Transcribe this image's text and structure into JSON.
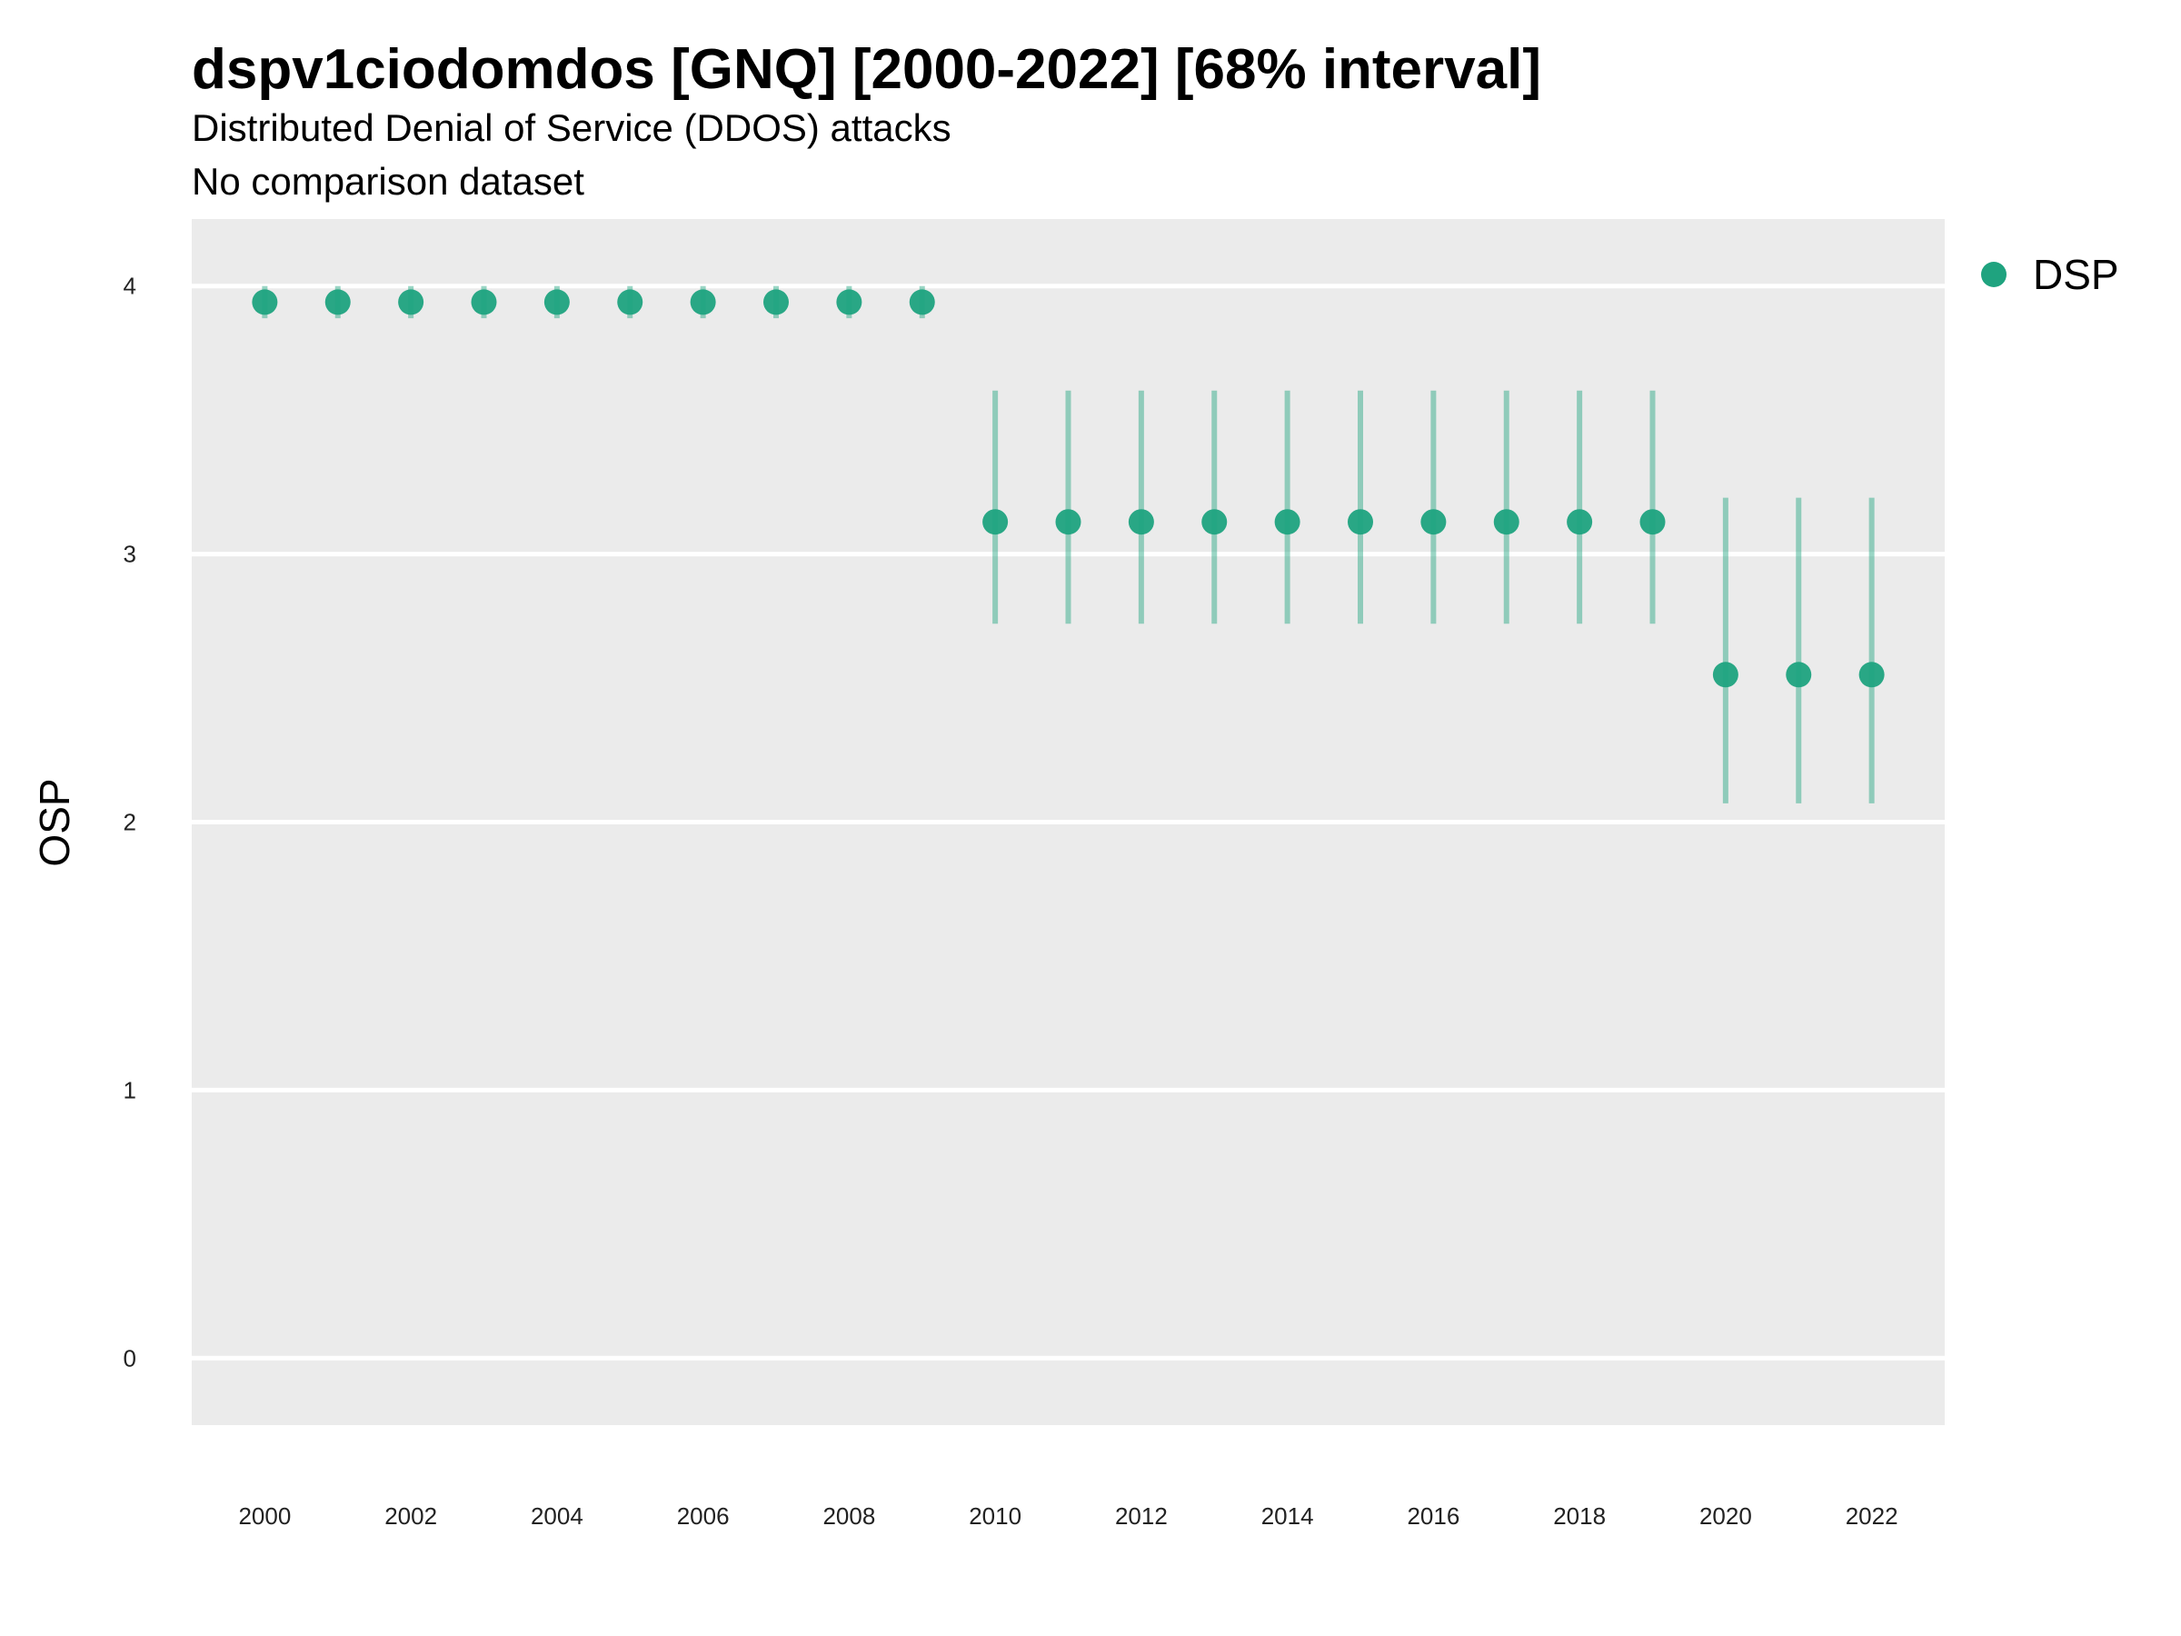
{
  "chart_data": {
    "type": "scatter",
    "title": "dspv1ciodomdos [GNQ] [2000-2022] [68% interval]",
    "subtitle": "Distributed Denial of Service (DDOS) attacks",
    "caption": "No comparison dataset",
    "xlabel": "",
    "ylabel": "OSP",
    "xlim": [
      1999,
      2023
    ],
    "ylim": [
      -0.25,
      4.25
    ],
    "x_ticks": [
      "2000",
      "2002",
      "2004",
      "2006",
      "2008",
      "2010",
      "2012",
      "2014",
      "2016",
      "2018",
      "2020",
      "2022"
    ],
    "y_ticks": [
      "0",
      "1",
      "2",
      "3",
      "4"
    ],
    "grid": true,
    "legend_position": "right",
    "series": [
      {
        "name": "DSP",
        "color": "#1fa37f",
        "points": [
          {
            "x": 2000,
            "y": 3.94,
            "low": 3.88,
            "high": 4.0
          },
          {
            "x": 2001,
            "y": 3.94,
            "low": 3.88,
            "high": 4.0
          },
          {
            "x": 2002,
            "y": 3.94,
            "low": 3.88,
            "high": 4.0
          },
          {
            "x": 2003,
            "y": 3.94,
            "low": 3.88,
            "high": 4.0
          },
          {
            "x": 2004,
            "y": 3.94,
            "low": 3.88,
            "high": 4.0
          },
          {
            "x": 2005,
            "y": 3.94,
            "low": 3.88,
            "high": 4.0
          },
          {
            "x": 2006,
            "y": 3.94,
            "low": 3.88,
            "high": 4.0
          },
          {
            "x": 2007,
            "y": 3.94,
            "low": 3.88,
            "high": 4.0
          },
          {
            "x": 2008,
            "y": 3.94,
            "low": 3.88,
            "high": 4.0
          },
          {
            "x": 2009,
            "y": 3.94,
            "low": 3.88,
            "high": 4.0
          },
          {
            "x": 2010,
            "y": 3.12,
            "low": 2.74,
            "high": 3.61
          },
          {
            "x": 2011,
            "y": 3.12,
            "low": 2.74,
            "high": 3.61
          },
          {
            "x": 2012,
            "y": 3.12,
            "low": 2.74,
            "high": 3.61
          },
          {
            "x": 2013,
            "y": 3.12,
            "low": 2.74,
            "high": 3.61
          },
          {
            "x": 2014,
            "y": 3.12,
            "low": 2.74,
            "high": 3.61
          },
          {
            "x": 2015,
            "y": 3.12,
            "low": 2.74,
            "high": 3.61
          },
          {
            "x": 2016,
            "y": 3.12,
            "low": 2.74,
            "high": 3.61
          },
          {
            "x": 2017,
            "y": 3.12,
            "low": 2.74,
            "high": 3.61
          },
          {
            "x": 2018,
            "y": 3.12,
            "low": 2.74,
            "high": 3.61
          },
          {
            "x": 2019,
            "y": 3.12,
            "low": 2.74,
            "high": 3.61
          },
          {
            "x": 2020,
            "y": 2.55,
            "low": 2.07,
            "high": 3.21
          },
          {
            "x": 2021,
            "y": 2.55,
            "low": 2.07,
            "high": 3.21
          },
          {
            "x": 2022,
            "y": 2.55,
            "low": 2.07,
            "high": 3.21
          }
        ]
      }
    ]
  }
}
